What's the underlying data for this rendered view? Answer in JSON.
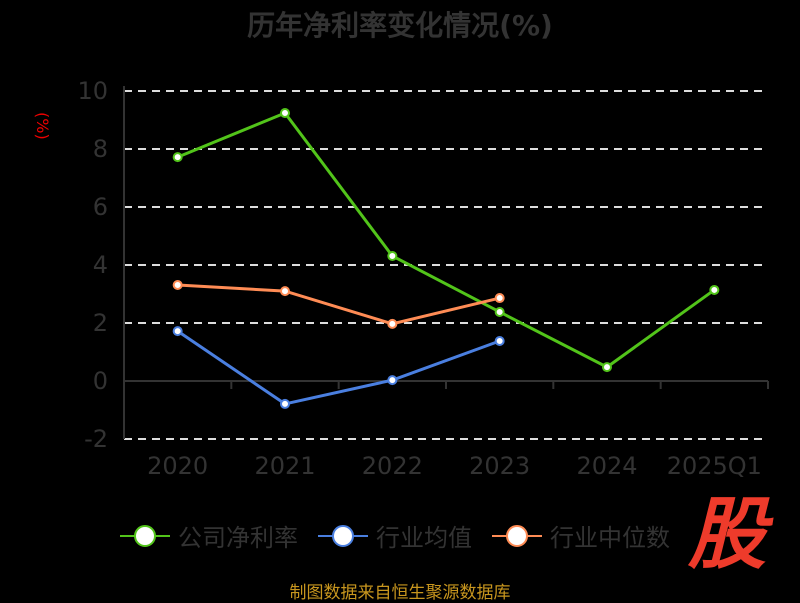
{
  "chart_data": {
    "type": "line",
    "title": "历年净利率变化情况(%)",
    "ylabel": "(%)",
    "categories": [
      "2020",
      "2021",
      "2022",
      "2023",
      "2024",
      "2025Q1"
    ],
    "ylim": [
      -2,
      10
    ],
    "yticks": [
      10,
      8,
      6,
      4,
      2,
      0,
      -2
    ],
    "grid": true,
    "legend_placement": "bottom",
    "series": [
      {
        "name": "公司净利率",
        "color": "#52c41a",
        "values": [
          7.72,
          9.24,
          4.31,
          2.38,
          0.48,
          3.14
        ]
      },
      {
        "name": "行业均值",
        "color": "#4a7fe0",
        "values": [
          1.72,
          -0.79,
          0.03,
          1.38,
          null,
          null
        ]
      },
      {
        "name": "行业中位数",
        "color": "#ff8c55",
        "values": [
          3.31,
          3.1,
          1.97,
          2.86,
          null,
          null
        ]
      }
    ]
  },
  "source": "制图数据来自恒生聚源数据库",
  "logo_text": "股"
}
